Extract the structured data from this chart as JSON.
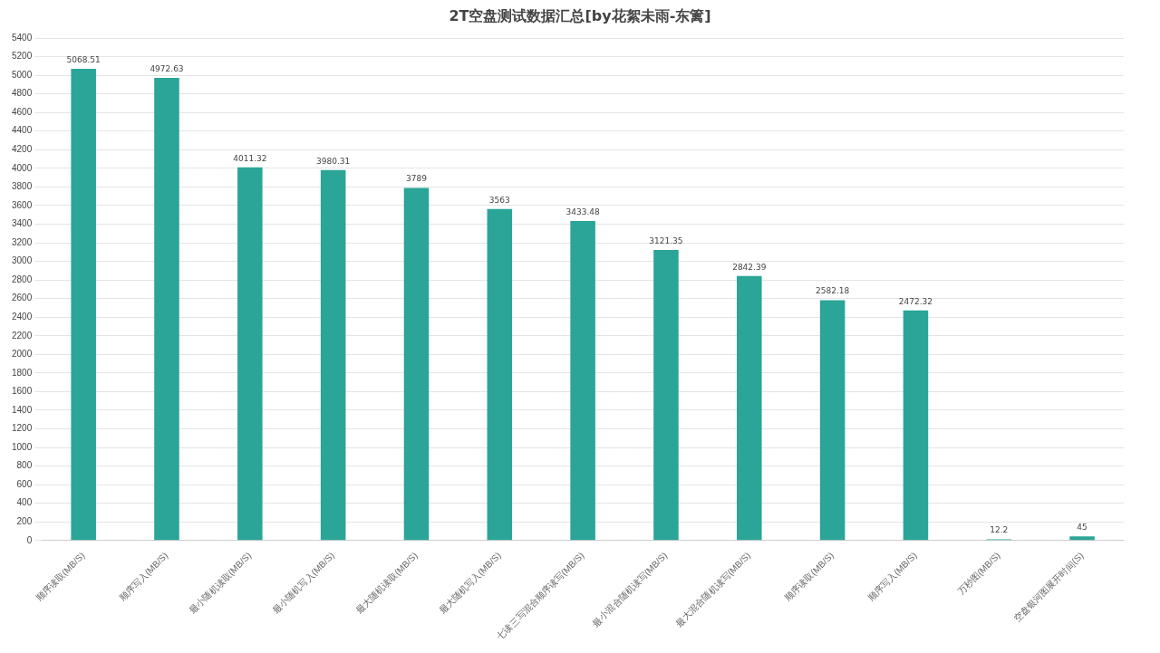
{
  "chart_data": {
    "type": "bar",
    "title": "2T空盘测试数据汇总[by花絮未雨-东篱]",
    "categories": [
      "顺序读取(MB/S)",
      "顺序写入(MB/S)",
      "最小随机读取(MB/S)",
      "最小随机写入(MB/S)",
      "最大随机读取(MB/S)",
      "最大随机写入(MB/S)",
      "七读三写混合顺序读写(MB/S)",
      "最小混合随机读写(MB/S)",
      "最大混合随机读写(MB/S)",
      "顺序读取(MB/S)",
      "顺序写入(MB/S)",
      "万秒图(MB/S)",
      "空盘银河图展开时间(S)"
    ],
    "values": [
      5068.51,
      4972.63,
      4011.32,
      3980.31,
      3789,
      3563,
      3433.48,
      3121.35,
      2842.39,
      2582.18,
      2472.32,
      12.2,
      45
    ],
    "color": "#2aa597",
    "ylim": [
      0,
      5400
    ],
    "yticks": [
      0,
      200,
      400,
      600,
      800,
      1000,
      1200,
      1400,
      1600,
      1800,
      2000,
      2200,
      2400,
      2600,
      2800,
      3000,
      3200,
      3400,
      3600,
      3800,
      4000,
      4200,
      4400,
      4600,
      4800,
      5000,
      5200,
      5400
    ],
    "grid": "y",
    "data_labels": true
  }
}
